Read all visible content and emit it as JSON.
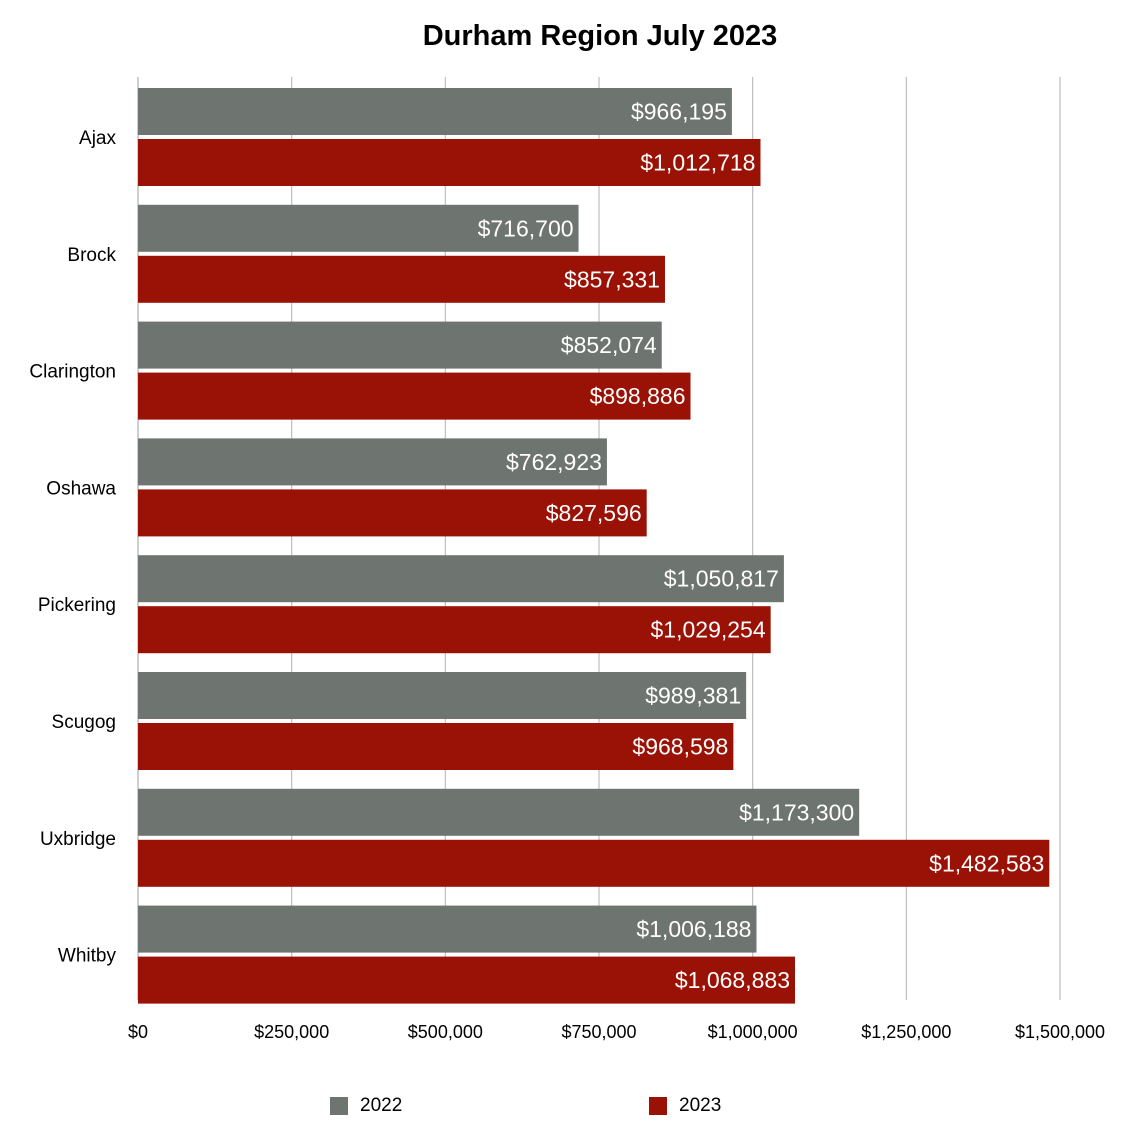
{
  "colors": {
    "2022": "#6e7470",
    "2023": "#9a1105",
    "grid": "#bdbdbd"
  },
  "chart_data": {
    "type": "bar",
    "orientation": "horizontal",
    "title": "Durham Region July 2023",
    "xlabel": "",
    "ylabel": "",
    "xlim": [
      0,
      1500000
    ],
    "grid": true,
    "legend_position": "bottom",
    "categories": [
      "Ajax",
      "Brock",
      "Clarington",
      "Oshawa",
      "Pickering",
      "Scugog",
      "Uxbridge",
      "Whitby"
    ],
    "x_ticks": [
      "$0",
      "$250,000",
      "$500,000",
      "$750,000",
      "$1,000,000",
      "$1,250,000",
      "$1,500,000"
    ],
    "series": [
      {
        "name": "2022",
        "values": [
          966195,
          716700,
          852074,
          762923,
          1050817,
          989381,
          1173300,
          1006188
        ],
        "labels": [
          "$966,195",
          "$716,700",
          "$852,074",
          "$762,923",
          "$1,050,817",
          "$989,381",
          "$1,173,300",
          "$1,006,188"
        ]
      },
      {
        "name": "2023",
        "values": [
          1012718,
          857331,
          898886,
          827596,
          1029254,
          968598,
          1482583,
          1068883
        ],
        "labels": [
          "$1,012,718",
          "$857,331",
          "$898,886",
          "$827,596",
          "$1,029,254",
          "$968,598",
          "$1,482,583",
          "$1,068,883"
        ]
      }
    ]
  }
}
